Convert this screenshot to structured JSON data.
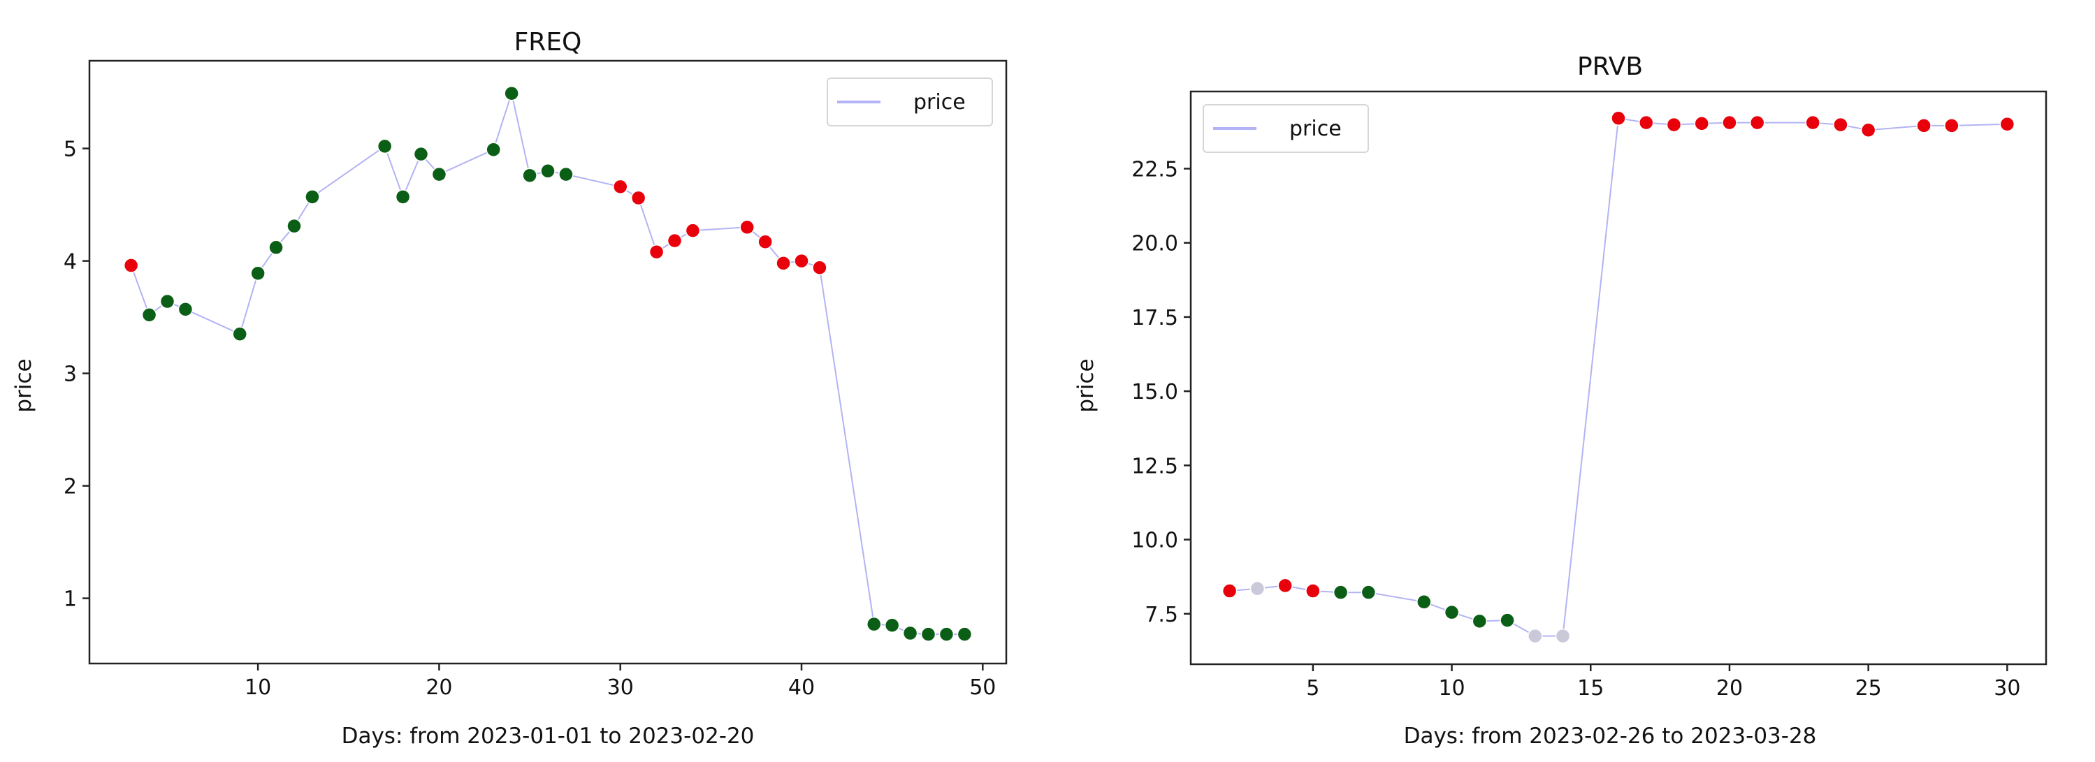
{
  "chart_data": [
    {
      "type": "line",
      "title": "FREQ",
      "xlabel": "Days: from 2023-01-01 to 2023-02-20",
      "ylabel": "price",
      "xlim": [
        0.7,
        51.3
      ],
      "ylim": [
        0.42,
        5.78
      ],
      "xticks": [
        10,
        20,
        30,
        40,
        50
      ],
      "yticks": [
        1,
        2,
        3,
        4,
        5
      ],
      "legend": {
        "label": "price",
        "position": "top-right"
      },
      "line_color": "#b3b3f5",
      "marker_colors": {
        "red": "#e8000b",
        "green": "#0b5e16",
        "grey": "#c9c9d9"
      },
      "points": [
        {
          "x": 3,
          "y": 3.96,
          "c": "red"
        },
        {
          "x": 4,
          "y": 3.52,
          "c": "green"
        },
        {
          "x": 5,
          "y": 3.64,
          "c": "green"
        },
        {
          "x": 6,
          "y": 3.57,
          "c": "green"
        },
        {
          "x": 9,
          "y": 3.35,
          "c": "green"
        },
        {
          "x": 10,
          "y": 3.89,
          "c": "green"
        },
        {
          "x": 11,
          "y": 4.12,
          "c": "green"
        },
        {
          "x": 12,
          "y": 4.31,
          "c": "green"
        },
        {
          "x": 13,
          "y": 4.57,
          "c": "green"
        },
        {
          "x": 17,
          "y": 5.02,
          "c": "green"
        },
        {
          "x": 18,
          "y": 4.57,
          "c": "green"
        },
        {
          "x": 19,
          "y": 4.95,
          "c": "green"
        },
        {
          "x": 20,
          "y": 4.77,
          "c": "green"
        },
        {
          "x": 23,
          "y": 4.99,
          "c": "green"
        },
        {
          "x": 24,
          "y": 5.49,
          "c": "green"
        },
        {
          "x": 25,
          "y": 4.76,
          "c": "green"
        },
        {
          "x": 26,
          "y": 4.8,
          "c": "green"
        },
        {
          "x": 27,
          "y": 4.77,
          "c": "green"
        },
        {
          "x": 30,
          "y": 4.66,
          "c": "red"
        },
        {
          "x": 31,
          "y": 4.56,
          "c": "red"
        },
        {
          "x": 32,
          "y": 4.08,
          "c": "red"
        },
        {
          "x": 33,
          "y": 4.18,
          "c": "red"
        },
        {
          "x": 34,
          "y": 4.27,
          "c": "red"
        },
        {
          "x": 37,
          "y": 4.3,
          "c": "red"
        },
        {
          "x": 38,
          "y": 4.17,
          "c": "red"
        },
        {
          "x": 39,
          "y": 3.98,
          "c": "red"
        },
        {
          "x": 40,
          "y": 4.0,
          "c": "red"
        },
        {
          "x": 41,
          "y": 3.94,
          "c": "red"
        },
        {
          "x": 44,
          "y": 0.77,
          "c": "green"
        },
        {
          "x": 45,
          "y": 0.76,
          "c": "green"
        },
        {
          "x": 46,
          "y": 0.69,
          "c": "green"
        },
        {
          "x": 47,
          "y": 0.68,
          "c": "green"
        },
        {
          "x": 48,
          "y": 0.68,
          "c": "green"
        },
        {
          "x": 49,
          "y": 0.68,
          "c": "green"
        }
      ]
    },
    {
      "type": "line",
      "title": "PRVB",
      "xlabel": "Days: from 2023-02-26 to 2023-03-28",
      "ylabel": "price",
      "xlim": [
        0.6,
        31.4
      ],
      "ylim": [
        5.8,
        25.1
      ],
      "xticks": [
        5,
        10,
        15,
        20,
        25,
        30
      ],
      "yticks": [
        7.5,
        10.0,
        12.5,
        15.0,
        17.5,
        20.0,
        22.5
      ],
      "ytick_labels": [
        "7.5",
        "10.0",
        "12.5",
        "15.0",
        "17.5",
        "20.0",
        "22.5"
      ],
      "legend": {
        "label": "price",
        "position": "top-left"
      },
      "line_color": "#b3b3f5",
      "marker_colors": {
        "red": "#e8000b",
        "green": "#0b5e16",
        "grey": "#c9c9d9"
      },
      "points": [
        {
          "x": 2,
          "y": 8.27,
          "c": "red"
        },
        {
          "x": 3,
          "y": 8.35,
          "c": "grey"
        },
        {
          "x": 4,
          "y": 8.45,
          "c": "red"
        },
        {
          "x": 5,
          "y": 8.27,
          "c": "red"
        },
        {
          "x": 6,
          "y": 8.22,
          "c": "green"
        },
        {
          "x": 7,
          "y": 8.22,
          "c": "green"
        },
        {
          "x": 9,
          "y": 7.9,
          "c": "green"
        },
        {
          "x": 10,
          "y": 7.55,
          "c": "green"
        },
        {
          "x": 11,
          "y": 7.25,
          "c": "green"
        },
        {
          "x": 12,
          "y": 7.28,
          "c": "green"
        },
        {
          "x": 13,
          "y": 6.75,
          "c": "grey"
        },
        {
          "x": 14,
          "y": 6.75,
          "c": "grey"
        },
        {
          "x": 16,
          "y": 24.2,
          "c": "red"
        },
        {
          "x": 17,
          "y": 24.05,
          "c": "red"
        },
        {
          "x": 18,
          "y": 23.98,
          "c": "red"
        },
        {
          "x": 19,
          "y": 24.02,
          "c": "red"
        },
        {
          "x": 20,
          "y": 24.05,
          "c": "red"
        },
        {
          "x": 21,
          "y": 24.05,
          "c": "red"
        },
        {
          "x": 23,
          "y": 24.05,
          "c": "red"
        },
        {
          "x": 24,
          "y": 23.98,
          "c": "red"
        },
        {
          "x": 25,
          "y": 23.8,
          "c": "red"
        },
        {
          "x": 27,
          "y": 23.95,
          "c": "red"
        },
        {
          "x": 28,
          "y": 23.95,
          "c": "red"
        },
        {
          "x": 30,
          "y": 24.0,
          "c": "red"
        }
      ]
    }
  ]
}
